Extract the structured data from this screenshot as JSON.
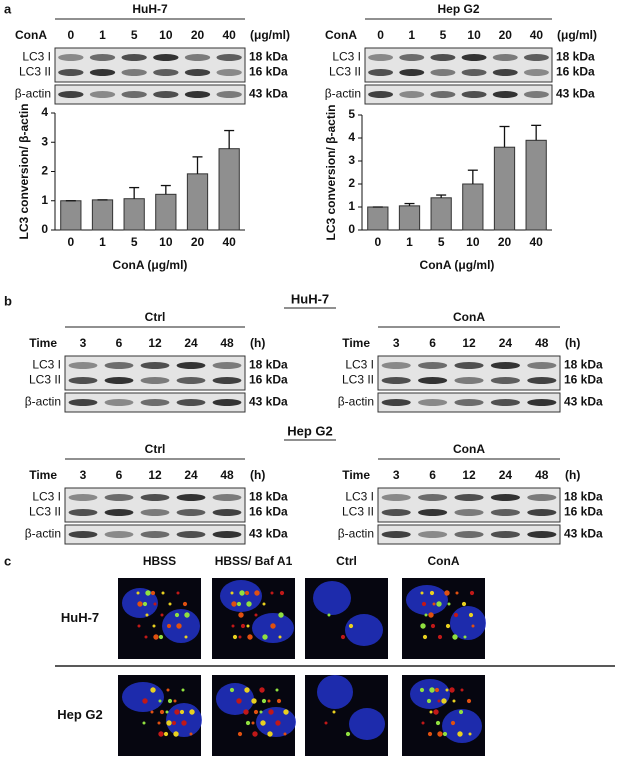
{
  "panel_a": {
    "label": "a",
    "blots": [
      {
        "title": "HuH-7",
        "lane_header": "ConA",
        "lanes": [
          "0",
          "1",
          "5",
          "10",
          "20",
          "40"
        ],
        "unit": "(μg/ml)",
        "rows": [
          {
            "names": [
              "LC3 I",
              "LC3 II"
            ],
            "sizes": [
              "18 kDa",
              "16 kDa"
            ]
          },
          {
            "names": [
              "β-actin"
            ],
            "sizes": [
              "43 kDa"
            ]
          }
        ]
      },
      {
        "title": "Hep G2",
        "lane_header": "ConA",
        "lanes": [
          "0",
          "1",
          "5",
          "10",
          "20",
          "40"
        ],
        "unit": "(μg/ml)",
        "rows": [
          {
            "names": [
              "LC3 I",
              "LC3 II"
            ],
            "sizes": [
              "18 kDa",
              "16 kDa"
            ]
          },
          {
            "names": [
              "β-actin"
            ],
            "sizes": [
              "43 kDa"
            ]
          }
        ]
      }
    ]
  },
  "chart_data": [
    {
      "type": "bar",
      "y_label": "LC3 conversion/ β-actin",
      "x_label": "ConA (μg/ml)",
      "categories": [
        "0",
        "1",
        "5",
        "10",
        "20",
        "40"
      ],
      "values": [
        1,
        1.03,
        1.07,
        1.22,
        1.92,
        2.78
      ],
      "errors": [
        0,
        0,
        0.38,
        0.3,
        0.58,
        0.62
      ],
      "color": "#8f8f8f",
      "ylim": [
        0,
        4
      ],
      "yticks": [
        0,
        1,
        2,
        3,
        4
      ]
    },
    {
      "type": "bar",
      "y_label": "LC3 conversion/ β-actin",
      "x_label": "ConA (μg/ml)",
      "categories": [
        "0",
        "1",
        "5",
        "10",
        "20",
        "40"
      ],
      "values": [
        1,
        1.05,
        1.4,
        2.0,
        3.6,
        3.9
      ],
      "errors": [
        0,
        0.1,
        0.12,
        0.6,
        0.9,
        0.65
      ],
      "color": "#8f8f8f",
      "ylim": [
        0,
        5
      ],
      "yticks": [
        0,
        1,
        2,
        3,
        4,
        5
      ]
    }
  ],
  "panel_b": {
    "label": "b",
    "groups": [
      {
        "cell": "HuH-7",
        "blots": [
          {
            "title": "Ctrl",
            "lane_header": "Time",
            "lanes": [
              "3",
              "6",
              "12",
              "24",
              "48"
            ],
            "unit": "(h)",
            "rows": [
              {
                "names": [
                  "LC3 I",
                  "LC3 II"
                ],
                "sizes": [
                  "18 kDa",
                  "16 kDa"
                ]
              },
              {
                "names": [
                  "β-actin"
                ],
                "sizes": [
                  "43 kDa"
                ]
              }
            ]
          },
          {
            "title": "ConA",
            "lane_header": "Time",
            "lanes": [
              "3",
              "6",
              "12",
              "24",
              "48"
            ],
            "unit": "(h)",
            "rows": [
              {
                "names": [
                  "LC3 I",
                  "LC3 II"
                ],
                "sizes": [
                  "18 kDa",
                  "16 kDa"
                ]
              },
              {
                "names": [
                  "β-actin"
                ],
                "sizes": [
                  "43 kDa"
                ]
              }
            ]
          }
        ]
      },
      {
        "cell": "Hep G2",
        "blots": [
          {
            "title": "Ctrl",
            "lane_header": "Time",
            "lanes": [
              "3",
              "6",
              "12",
              "24",
              "48"
            ],
            "unit": "(h)",
            "rows": [
              {
                "names": [
                  "LC3 I",
                  "LC3 II"
                ],
                "sizes": [
                  "18 kDa",
                  "16 kDa"
                ]
              },
              {
                "names": [
                  "β-actin"
                ],
                "sizes": [
                  "43 kDa"
                ]
              }
            ]
          },
          {
            "title": "ConA",
            "lane_header": "Time",
            "lanes": [
              "3",
              "6",
              "12",
              "24",
              "48"
            ],
            "unit": "(h)",
            "rows": [
              {
                "names": [
                  "LC3 I",
                  "LC3 II"
                ],
                "sizes": [
                  "18 kDa",
                  "16 kDa"
                ]
              },
              {
                "names": [
                  "β-actin"
                ],
                "sizes": [
                  "43 kDa"
                ]
              }
            ]
          }
        ]
      }
    ]
  },
  "panel_c": {
    "label": "c",
    "columns": [
      "HBSS",
      "HBSS/ Baf A1",
      "Ctrl",
      "ConA"
    ],
    "rows": [
      "HuH-7",
      "Hep G2"
    ]
  }
}
